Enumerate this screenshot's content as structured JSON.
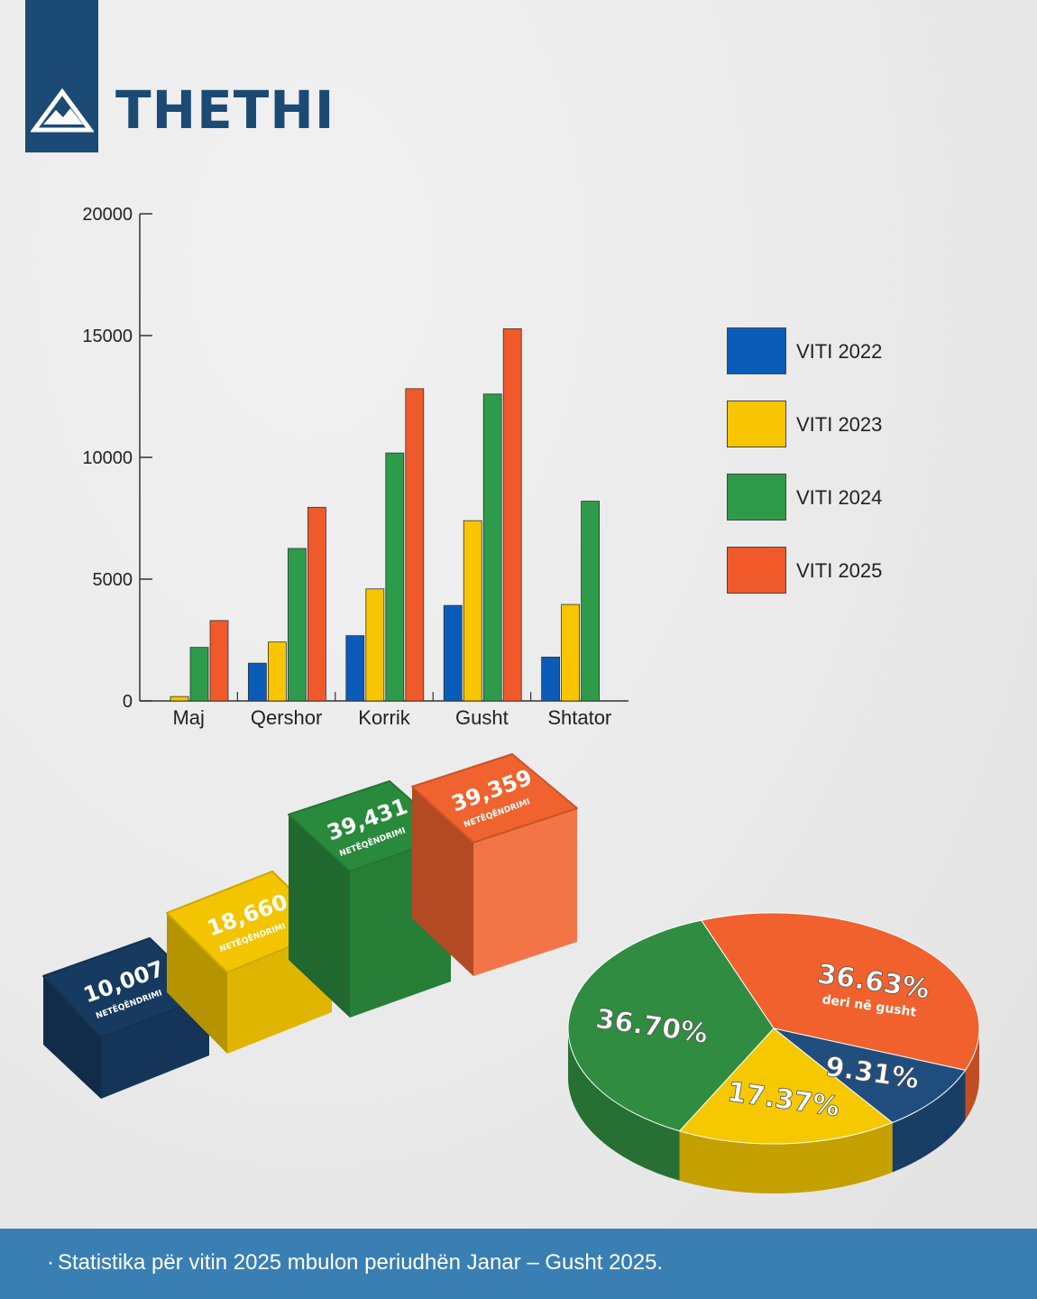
{
  "brand": {
    "name": "THETHI",
    "logo_icon": "mountain-triangle-icon",
    "color": "#1b4a75"
  },
  "chart_data": [
    {
      "type": "bar",
      "categories": [
        "Maj",
        "Qershor",
        "Korrik",
        "Gusht",
        "Shtator"
      ],
      "series": [
        {
          "name": "VITI 2022",
          "color": "#0b5cb8",
          "values": [
            0,
            1550,
            2680,
            3920,
            1800
          ]
        },
        {
          "name": "VITI 2023",
          "color": "#f7c600",
          "values": [
            180,
            2420,
            4600,
            7400,
            3960
          ]
        },
        {
          "name": "VITI 2024",
          "color": "#2e9b4a",
          "values": [
            2200,
            6260,
            10180,
            12600,
            8200
          ]
        },
        {
          "name": "VITI 2025",
          "color": "#f05a2a",
          "values": [
            3300,
            7950,
            12820,
            15280,
            null
          ]
        }
      ],
      "yticks": [
        "0",
        "5000",
        "10000",
        "15000",
        "20000"
      ],
      "ylim": [
        0,
        20000
      ],
      "legend": "right",
      "grid": false
    },
    {
      "type": "bar",
      "style": "3d-blocks",
      "blocks": [
        {
          "value": "10,007",
          "label": "NETËQËNDRIMI",
          "color": "#163a60"
        },
        {
          "value": "18,660",
          "label": "NETËQËNDRIMI",
          "color": "#f2c500"
        },
        {
          "value": "39,431",
          "label": "NETËQËNDRIMI",
          "color": "#2a8a3c"
        },
        {
          "value": "39,359",
          "label": "NETËQËNDRIMI",
          "color": "#f0622e"
        }
      ]
    },
    {
      "type": "pie",
      "style": "3d",
      "slices": [
        {
          "label": "36.63%",
          "sublabel": "deri në gusht",
          "value": 36.63,
          "color": "#f0612d"
        },
        {
          "label": "9.31%",
          "sublabel": "",
          "value": 9.31,
          "color": "#1f4e7e"
        },
        {
          "label": "17.37%",
          "sublabel": "",
          "value": 17.37,
          "color": "#f5c800"
        },
        {
          "label": "36.70%",
          "sublabel": "",
          "value": 36.7,
          "color": "#2f8c41"
        }
      ]
    }
  ],
  "footer": {
    "bullet": "·",
    "text": "Statistika për vitin 2025 mbulon periudhën Janar – Gusht 2025.",
    "background": "#3a7fb4"
  }
}
